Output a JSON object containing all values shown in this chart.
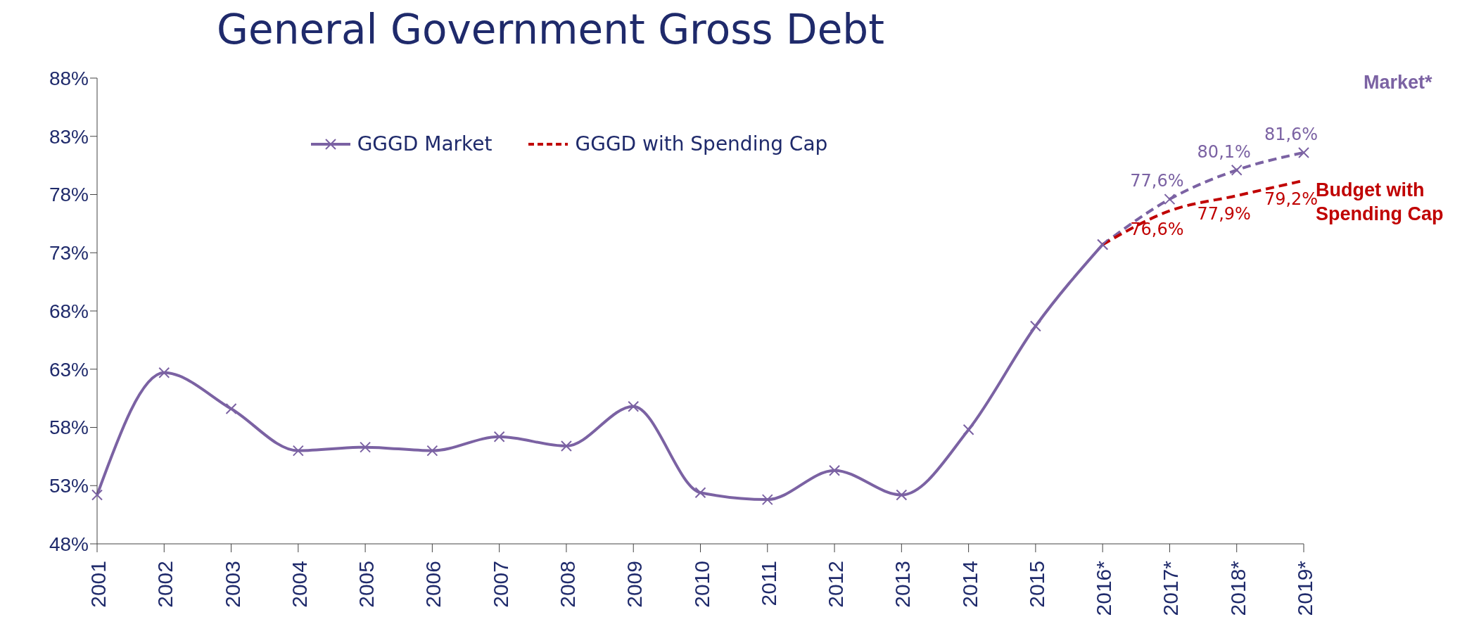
{
  "chart_data": {
    "type": "line",
    "title": "General Government Gross Debt",
    "categories": [
      "2001",
      "2002",
      "2003",
      "2004",
      "2005",
      "2006",
      "2007",
      "2008",
      "2009",
      "2010",
      "2011",
      "2012",
      "2013",
      "2014",
      "2015",
      "2016*",
      "2017*",
      "2018*",
      "2019*"
    ],
    "series": [
      {
        "name": "GGGD Market",
        "color": "#7b62a3",
        "marker": "cross",
        "line_style": "solid",
        "values": [
          52.2,
          62.7,
          59.6,
          56.0,
          56.3,
          56.0,
          57.2,
          56.4,
          59.8,
          52.4,
          51.8,
          54.3,
          52.2,
          57.8,
          66.7,
          73.7,
          null,
          null,
          null
        ]
      },
      {
        "color": "#7b62a3",
        "marker": "cross",
        "line_style": "dashed",
        "values": [
          null,
          null,
          null,
          null,
          null,
          null,
          null,
          null,
          null,
          null,
          null,
          null,
          null,
          null,
          null,
          73.7,
          77.6,
          80.1,
          81.6
        ],
        "value_labels": [
          null,
          null,
          null,
          null,
          null,
          null,
          null,
          null,
          null,
          null,
          null,
          null,
          null,
          null,
          null,
          null,
          "77,6%",
          "80,1%",
          "81,6%"
        ]
      },
      {
        "name": "GGGD with Spending Cap",
        "color": "#c00000",
        "marker": "none",
        "line_style": "dashed",
        "values": [
          null,
          null,
          null,
          null,
          null,
          null,
          null,
          null,
          null,
          null,
          null,
          null,
          null,
          null,
          null,
          73.7,
          76.6,
          77.9,
          79.2
        ],
        "value_labels": [
          null,
          null,
          null,
          null,
          null,
          null,
          null,
          null,
          null,
          null,
          null,
          null,
          null,
          null,
          null,
          null,
          "76,6%",
          "77,9%",
          "79,2%"
        ]
      }
    ],
    "ylim": [
      48,
      88
    ],
    "yticks": [
      {
        "value": 48,
        "label": "48%"
      },
      {
        "value": 53,
        "label": "53%"
      },
      {
        "value": 58,
        "label": "58%"
      },
      {
        "value": 63,
        "label": "63%"
      },
      {
        "value": 68,
        "label": "68%"
      },
      {
        "value": 73,
        "label": "73%"
      },
      {
        "value": 78,
        "label": "78%"
      },
      {
        "value": 83,
        "label": "83%"
      },
      {
        "value": 88,
        "label": "88%"
      }
    ],
    "grid": false,
    "legend": "top",
    "annotations": [
      "Market*",
      "Budget with Spending Cap"
    ]
  }
}
